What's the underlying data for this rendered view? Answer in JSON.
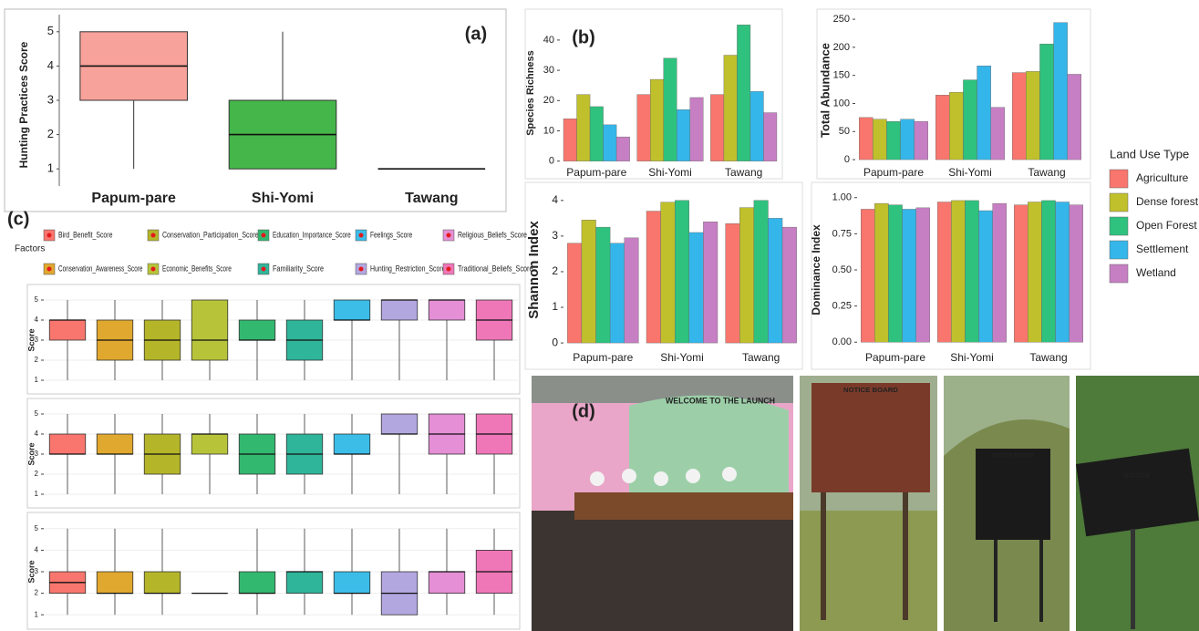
{
  "chart_data": [
    {
      "type": "box",
      "label": "(a)",
      "ylabel": "Hunting Practices Score",
      "categories": [
        "Papum-pare",
        "Shi-Yomi",
        "Tawang"
      ],
      "colors": [
        "#f7a29b",
        "#45b649",
        "#ffffff"
      ],
      "whisker_low": [
        1,
        1,
        1
      ],
      "q1": [
        3,
        1,
        1
      ],
      "median": [
        4,
        2,
        1
      ],
      "q3": [
        5,
        3,
        1
      ],
      "whisker_high": [
        5,
        5,
        1
      ],
      "ylim": [
        0.5,
        5.5
      ],
      "yticks": [
        1,
        2,
        3,
        4,
        5
      ]
    },
    {
      "type": "grouped-bar",
      "label": "(b)",
      "legend_title": "Land Use Type",
      "categories": [
        "Papum-pare",
        "Shi-Yomi",
        "Tawang"
      ],
      "series": [
        {
          "name": "Agriculture",
          "color": "#f8766d"
        },
        {
          "name": "Dense forest",
          "color": "#c0c02c"
        },
        {
          "name": "Open Forest",
          "color": "#2ec27e"
        },
        {
          "name": "Settlement",
          "color": "#35b6ea"
        },
        {
          "name": "Wetland",
          "color": "#c67fc3"
        }
      ],
      "panels": [
        {
          "ylabel": "Species Richness",
          "ylim": [
            -1,
            46
          ],
          "yticks": [
            0,
            10,
            20,
            30,
            40
          ],
          "values": [
            [
              14,
              22,
              22
            ],
            [
              22,
              27,
              35
            ],
            [
              18,
              34,
              45
            ],
            [
              12,
              17,
              23
            ],
            [
              8,
              21,
              16
            ]
          ]
        },
        {
          "ylabel": "Total Abundance",
          "ylim": [
            -8,
            255
          ],
          "yticks": [
            0,
            50,
            100,
            150,
            200,
            250
          ],
          "values": [
            [
              75,
              115,
              155
            ],
            [
              72,
              120,
              157
            ],
            [
              68,
              142,
              206
            ],
            [
              72,
              167,
              244
            ],
            [
              68,
              93,
              152
            ]
          ]
        },
        {
          "ylabel": "Shannon Index",
          "ylim": [
            -0.1,
            4.2
          ],
          "yticks": [
            0,
            1,
            2,
            3,
            4
          ],
          "values": [
            [
              2.8,
              3.7,
              3.35
            ],
            [
              3.45,
              3.95,
              3.8
            ],
            [
              3.25,
              4.0,
              4.0
            ],
            [
              2.8,
              3.1,
              3.5
            ],
            [
              2.95,
              3.4,
              3.25
            ]
          ]
        },
        {
          "ylabel": "Dominance Index",
          "ylim": [
            -0.03,
            1.03
          ],
          "yticks": [
            {
              "value": 0,
              "label": "0.00"
            },
            {
              "value": 0.25,
              "label": "0.25"
            },
            {
              "value": 0.5,
              "label": "0.50"
            },
            {
              "value": 0.75,
              "label": "0.75"
            },
            {
              "value": 1,
              "label": "1.00"
            }
          ],
          "values": [
            [
              0.92,
              0.97,
              0.95
            ],
            [
              0.96,
              0.98,
              0.97
            ],
            [
              0.95,
              0.98,
              0.98
            ],
            [
              0.92,
              0.91,
              0.97
            ],
            [
              0.93,
              0.96,
              0.95
            ]
          ]
        }
      ]
    },
    {
      "type": "box-grid",
      "label": "(c)",
      "legend_title": "Factors",
      "ylabel": "Score",
      "categories": [
        "Bird_Benefit_Score",
        "Conservation_Awareness_Score",
        "Conservation_Participation_Score",
        "Economic_Benefits_Score",
        "Education_Importance_Score",
        "Familiarity_Score",
        "Feelings_Score",
        "Hunting_Restriction_Score",
        "Religious_Beliefs_Score",
        "Traditional_Beliefs_Score"
      ],
      "colors": [
        "#f8766d",
        "#e0a82e",
        "#b5b52a",
        "#b7c43a",
        "#33b86f",
        "#2fb59a",
        "#3bbde8",
        "#b3a7e0",
        "#e48fd6",
        "#ef77b8"
      ],
      "ylim": [
        0.5,
        5.5
      ],
      "yticks": [
        1,
        2,
        3,
        4,
        5
      ],
      "panels": [
        {
          "whisker_low": [
            1,
            1,
            1,
            1,
            1,
            1,
            1,
            1,
            1,
            1
          ],
          "q1": [
            3,
            2,
            2,
            2,
            3,
            2,
            4,
            4,
            4,
            3
          ],
          "median": [
            4,
            3,
            3,
            3,
            3,
            3,
            4,
            5,
            5,
            4
          ],
          "q3": [
            4,
            4,
            4,
            5,
            4,
            4,
            5,
            5,
            5,
            5
          ],
          "whisker_high": [
            5,
            5,
            5,
            5,
            5,
            5,
            5,
            5,
            5,
            5
          ]
        },
        {
          "whisker_low": [
            1,
            1,
            1,
            1,
            1,
            1,
            1,
            1,
            1,
            1
          ],
          "q1": [
            3,
            3,
            2,
            3,
            2,
            2,
            3,
            4,
            3,
            3
          ],
          "median": [
            3,
            3,
            3,
            4,
            3,
            3,
            3,
            4,
            4,
            4
          ],
          "q3": [
            4,
            4,
            4,
            4,
            4,
            4,
            4,
            5,
            5,
            5
          ],
          "whisker_high": [
            5,
            5,
            5,
            5,
            5,
            5,
            5,
            5,
            5,
            5
          ]
        },
        {
          "whisker_low": [
            1,
            1,
            1,
            2,
            1,
            1,
            1,
            1,
            1,
            1
          ],
          "q1": [
            2,
            2,
            2,
            2,
            2,
            2,
            2,
            1,
            2,
            2
          ],
          "median": [
            2.5,
            2,
            2,
            2,
            2,
            3,
            2,
            2,
            3,
            3
          ],
          "q3": [
            3,
            3,
            3,
            2,
            3,
            3,
            3,
            3,
            3,
            4
          ],
          "whisker_high": [
            5,
            5,
            5,
            2,
            5,
            5,
            5,
            5,
            5,
            5
          ]
        }
      ]
    }
  ],
  "photos": {
    "label": "(d)",
    "texts": [
      "WELCOME TO THE LAUNCH",
      "NOTICE BOARD",
      "NOTICE BOARD",
      "NOTICE"
    ]
  }
}
